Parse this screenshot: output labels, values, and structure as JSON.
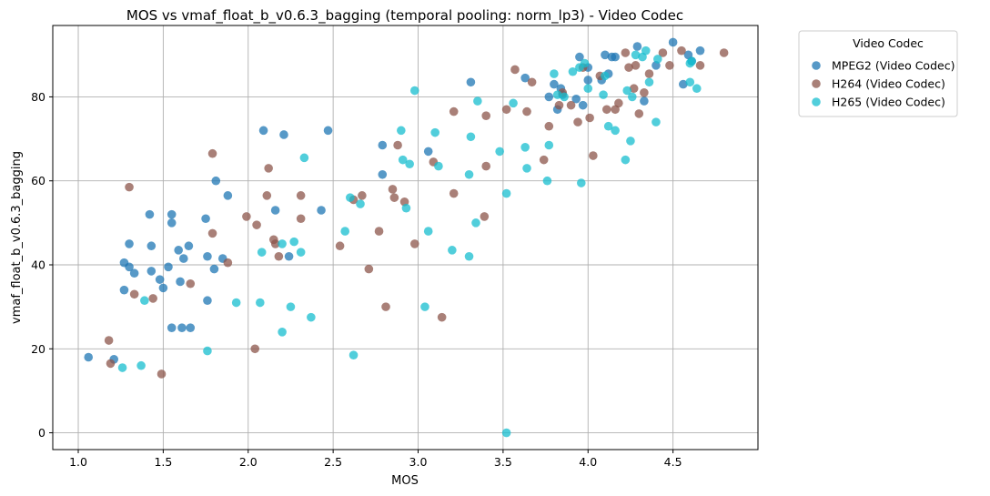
{
  "chart_data": {
    "type": "scatter",
    "title": "MOS vs vmaf_float_b_v0.6.3_bagging (temporal pooling: norm_lp3) - Video Codec",
    "xlabel": "MOS",
    "ylabel": "vmaf_float_b_v0.6.3_bagging",
    "xlim": [
      0.85,
      5.0
    ],
    "ylim": [
      -4,
      97
    ],
    "xticks": [
      1.0,
      1.5,
      2.0,
      2.5,
      3.0,
      3.5,
      4.0,
      4.5
    ],
    "xtick_labels": [
      "1.0",
      "1.5",
      "2.0",
      "2.5",
      "3.0",
      "3.5",
      "4.0",
      "4.5"
    ],
    "yticks": [
      0,
      20,
      40,
      60,
      80
    ],
    "ytick_labels": [
      "0",
      "20",
      "40",
      "60",
      "80"
    ],
    "grid": true,
    "legend": {
      "title": "Video Codec",
      "position": "outside-top-right"
    },
    "series": [
      {
        "name": "MPEG2 (Video Codec)",
        "color": "#1f77b4",
        "points": [
          [
            1.06,
            18
          ],
          [
            1.21,
            17.5
          ],
          [
            1.27,
            40.5
          ],
          [
            1.27,
            34
          ],
          [
            1.3,
            45
          ],
          [
            1.3,
            39.5
          ],
          [
            1.33,
            38
          ],
          [
            1.42,
            52
          ],
          [
            1.43,
            44.5
          ],
          [
            1.43,
            38.5
          ],
          [
            1.48,
            36.5
          ],
          [
            1.5,
            34.5
          ],
          [
            1.53,
            39.5
          ],
          [
            1.55,
            52
          ],
          [
            1.55,
            50
          ],
          [
            1.55,
            25
          ],
          [
            1.59,
            43.5
          ],
          [
            1.6,
            36
          ],
          [
            1.61,
            25
          ],
          [
            1.62,
            41.5
          ],
          [
            1.65,
            44.5
          ],
          [
            1.66,
            25
          ],
          [
            1.75,
            51
          ],
          [
            1.76,
            42
          ],
          [
            1.76,
            31.5
          ],
          [
            1.8,
            39
          ],
          [
            1.81,
            60
          ],
          [
            1.85,
            41.5
          ],
          [
            1.88,
            56.5
          ],
          [
            2.09,
            72
          ],
          [
            2.16,
            53
          ],
          [
            2.21,
            71
          ],
          [
            2.24,
            42
          ],
          [
            2.43,
            53
          ],
          [
            2.47,
            72
          ],
          [
            2.79,
            68.5
          ],
          [
            2.79,
            61.5
          ],
          [
            3.06,
            67
          ],
          [
            3.31,
            83.5
          ],
          [
            3.63,
            84.5
          ],
          [
            3.77,
            80
          ],
          [
            3.8,
            83
          ],
          [
            3.82,
            77
          ],
          [
            3.84,
            82
          ],
          [
            3.85,
            80.5
          ],
          [
            3.93,
            79.5
          ],
          [
            3.95,
            89.5
          ],
          [
            3.97,
            78
          ],
          [
            4.0,
            87
          ],
          [
            4.0,
            84
          ],
          [
            4.08,
            84
          ],
          [
            4.1,
            90
          ],
          [
            4.12,
            85.5
          ],
          [
            4.14,
            89.5
          ],
          [
            4.16,
            89.5
          ],
          [
            4.29,
            92
          ],
          [
            4.33,
            79
          ],
          [
            4.4,
            87.5
          ],
          [
            4.5,
            93
          ],
          [
            4.56,
            83
          ],
          [
            4.59,
            90
          ],
          [
            4.61,
            88.5
          ],
          [
            4.66,
            91
          ]
        ]
      },
      {
        "name": "H264 (Video Codec)",
        "color": "#8c564b",
        "points": [
          [
            1.18,
            22
          ],
          [
            1.19,
            16.5
          ],
          [
            1.3,
            58.5
          ],
          [
            1.33,
            33
          ],
          [
            1.44,
            32
          ],
          [
            1.49,
            14
          ],
          [
            1.66,
            35.5
          ],
          [
            1.79,
            66.5
          ],
          [
            1.79,
            47.5
          ],
          [
            1.88,
            40.5
          ],
          [
            1.99,
            51.5
          ],
          [
            2.04,
            20
          ],
          [
            2.05,
            49.5
          ],
          [
            2.11,
            56.5
          ],
          [
            2.12,
            63
          ],
          [
            2.15,
            46
          ],
          [
            2.16,
            45
          ],
          [
            2.18,
            42
          ],
          [
            2.31,
            56.5
          ],
          [
            2.31,
            51
          ],
          [
            2.54,
            44.5
          ],
          [
            2.62,
            55.5
          ],
          [
            2.67,
            56.5
          ],
          [
            2.71,
            39
          ],
          [
            2.77,
            48
          ],
          [
            2.81,
            30
          ],
          [
            2.85,
            58
          ],
          [
            2.86,
            56
          ],
          [
            2.88,
            68.5
          ],
          [
            2.92,
            55
          ],
          [
            2.98,
            45
          ],
          [
            3.09,
            64.5
          ],
          [
            3.14,
            27.5
          ],
          [
            3.21,
            57
          ],
          [
            3.21,
            76.5
          ],
          [
            3.39,
            51.5
          ],
          [
            3.4,
            63.5
          ],
          [
            3.4,
            75.5
          ],
          [
            3.52,
            77
          ],
          [
            3.57,
            86.5
          ],
          [
            3.64,
            76.5
          ],
          [
            3.67,
            83.5
          ],
          [
            3.74,
            65
          ],
          [
            3.77,
            73
          ],
          [
            3.83,
            78
          ],
          [
            3.85,
            81
          ],
          [
            3.9,
            78
          ],
          [
            3.94,
            74
          ],
          [
            3.97,
            87
          ],
          [
            4.01,
            75
          ],
          [
            4.03,
            66
          ],
          [
            4.07,
            85
          ],
          [
            4.11,
            77
          ],
          [
            4.16,
            77
          ],
          [
            4.18,
            78.5
          ],
          [
            4.22,
            90.5
          ],
          [
            4.24,
            87
          ],
          [
            4.27,
            82
          ],
          [
            4.28,
            87.5
          ],
          [
            4.3,
            76
          ],
          [
            4.33,
            81
          ],
          [
            4.36,
            85.5
          ],
          [
            4.44,
            90.5
          ],
          [
            4.48,
            87.5
          ],
          [
            4.55,
            91
          ],
          [
            4.66,
            87.5
          ],
          [
            4.8,
            90.5
          ]
        ]
      },
      {
        "name": "H265 (Video Codec)",
        "color": "#17becf",
        "points": [
          [
            1.26,
            15.5
          ],
          [
            1.37,
            16
          ],
          [
            1.39,
            31.5
          ],
          [
            1.76,
            19.5
          ],
          [
            1.93,
            31
          ],
          [
            2.07,
            31
          ],
          [
            2.08,
            43
          ],
          [
            2.2,
            24
          ],
          [
            2.2,
            45
          ],
          [
            2.25,
            30
          ],
          [
            2.27,
            45.5
          ],
          [
            2.31,
            43
          ],
          [
            2.33,
            65.5
          ],
          [
            2.37,
            27.5
          ],
          [
            2.57,
            48
          ],
          [
            2.6,
            56
          ],
          [
            2.62,
            18.5
          ],
          [
            2.66,
            54.5
          ],
          [
            2.9,
            72
          ],
          [
            2.91,
            65
          ],
          [
            2.93,
            53.5
          ],
          [
            2.95,
            64
          ],
          [
            2.98,
            81.5
          ],
          [
            3.04,
            30
          ],
          [
            3.06,
            48
          ],
          [
            3.1,
            71.5
          ],
          [
            3.12,
            63.5
          ],
          [
            3.2,
            43.5
          ],
          [
            3.3,
            61.5
          ],
          [
            3.3,
            42
          ],
          [
            3.31,
            70.5
          ],
          [
            3.34,
            50
          ],
          [
            3.35,
            79
          ],
          [
            3.48,
            67
          ],
          [
            3.52,
            57
          ],
          [
            3.52,
            0
          ],
          [
            3.56,
            78.5
          ],
          [
            3.63,
            68
          ],
          [
            3.64,
            63
          ],
          [
            3.76,
            60
          ],
          [
            3.77,
            68.5
          ],
          [
            3.8,
            85.5
          ],
          [
            3.82,
            80.5
          ],
          [
            3.86,
            80
          ],
          [
            3.91,
            86
          ],
          [
            3.95,
            87
          ],
          [
            3.96,
            59.5
          ],
          [
            3.98,
            88
          ],
          [
            4.0,
            82
          ],
          [
            4.09,
            80.5
          ],
          [
            4.1,
            85
          ],
          [
            4.12,
            73
          ],
          [
            4.16,
            72
          ],
          [
            4.22,
            65
          ],
          [
            4.23,
            81.5
          ],
          [
            4.25,
            69.5
          ],
          [
            4.26,
            80
          ],
          [
            4.28,
            90
          ],
          [
            4.32,
            89.5
          ],
          [
            4.34,
            91
          ],
          [
            4.36,
            83.5
          ],
          [
            4.4,
            74
          ],
          [
            4.41,
            89
          ],
          [
            4.6,
            83.5
          ],
          [
            4.6,
            88
          ],
          [
            4.61,
            88.5
          ],
          [
            4.64,
            82
          ]
        ]
      }
    ]
  }
}
